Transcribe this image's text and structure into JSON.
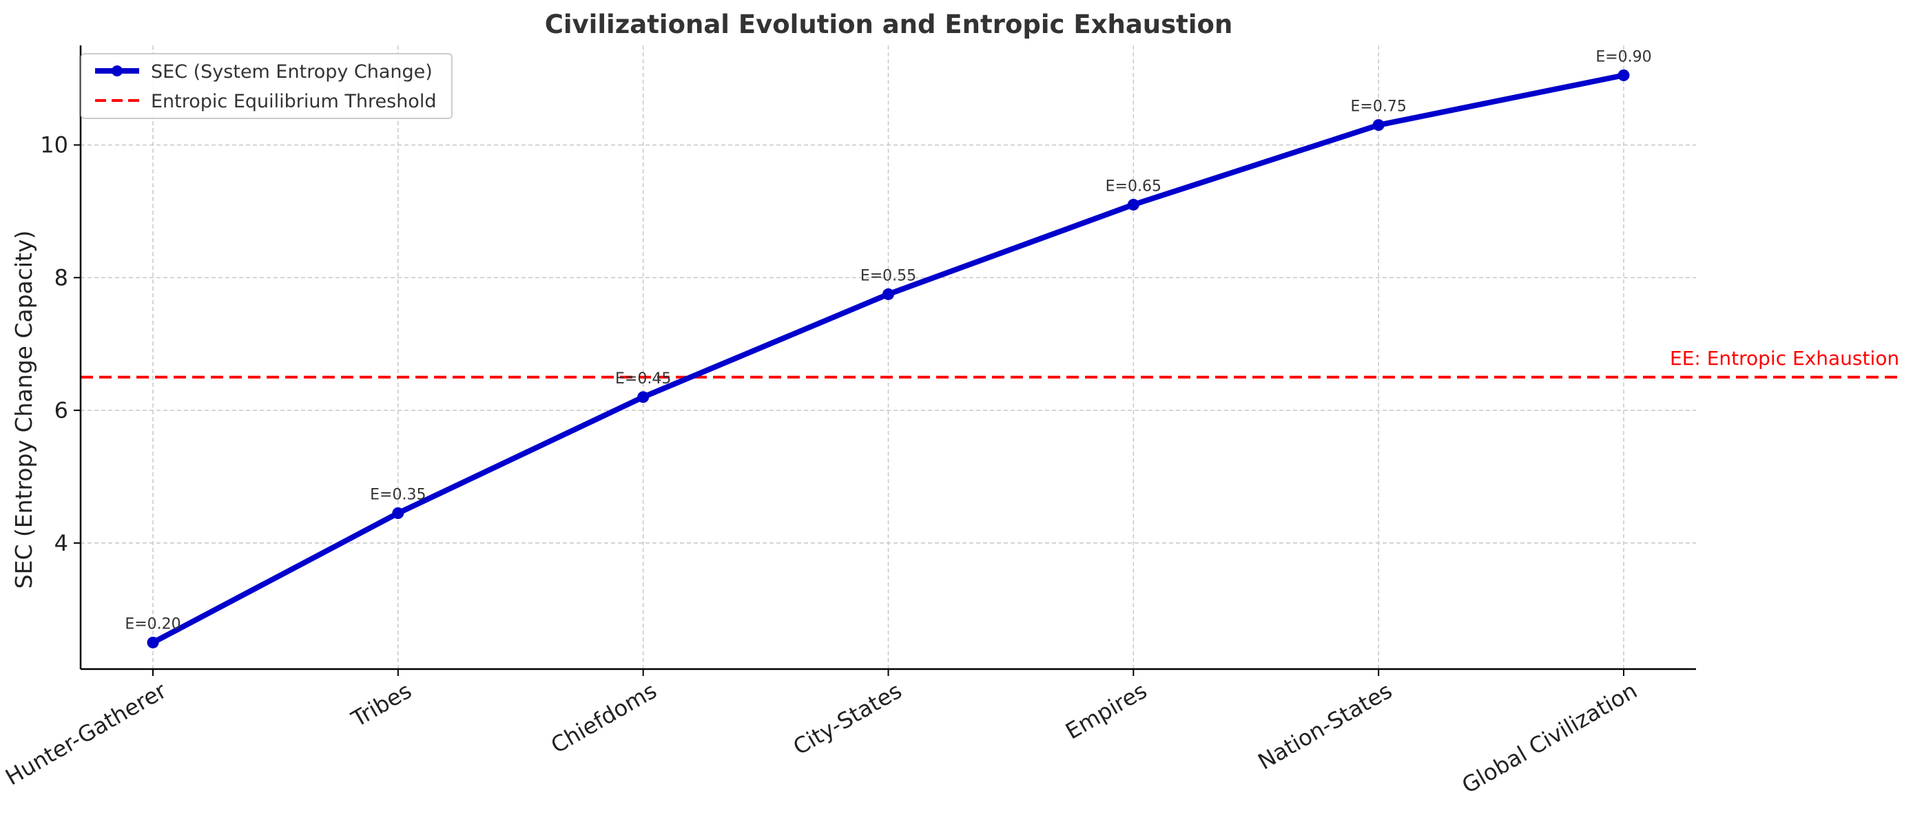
{
  "chart_data": {
    "type": "line",
    "title": "Civilizational Evolution and Entropic Exhaustion",
    "xlabel": "",
    "ylabel": "SEC (Entropy Change Capacity)",
    "categories": [
      "Hunter-Gatherer",
      "Tribes",
      "Chiefdoms",
      "City-States",
      "Empires",
      "Nation-States",
      "Global Civilization"
    ],
    "series": [
      {
        "name": "SEC (System Entropy Change)",
        "color": "#0000cc",
        "values": [
          2.5,
          4.45,
          6.2,
          7.75,
          9.1,
          10.3,
          11.05
        ],
        "point_labels": [
          "E=0.20",
          "E=0.35",
          "E=0.45",
          "E=0.55",
          "E=0.65",
          "E=0.75",
          "E=0.90"
        ]
      }
    ],
    "threshold": {
      "name": "Entropic Equilibrium Threshold",
      "value": 6.5,
      "color": "#ff0000",
      "style": "dashed",
      "annotation": "EE: Entropic Exhaustion"
    },
    "ylim": [
      2.1,
      11.5
    ],
    "yticks": [
      4,
      6,
      8,
      10
    ],
    "grid": true,
    "legend_position": "top-left"
  }
}
